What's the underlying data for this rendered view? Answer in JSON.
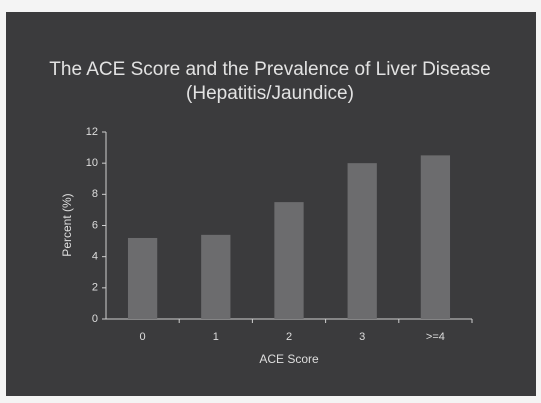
{
  "chart_data": {
    "type": "bar",
    "title": "The ACE Score and the Prevalence of Liver Disease (Hepatitis/Jaundice)",
    "y_label": "Percent (%)",
    "x_label": "ACE Score",
    "categories": [
      "0",
      "1",
      "2",
      "3",
      ">=4"
    ],
    "values": [
      5.2,
      5.4,
      7.5,
      10,
      10.5
    ],
    "color": "#6c6c6e",
    "ylim": [
      0,
      12
    ],
    "yticks": [
      0,
      2,
      4,
      6,
      8,
      10,
      12
    ],
    "grid": false
  }
}
